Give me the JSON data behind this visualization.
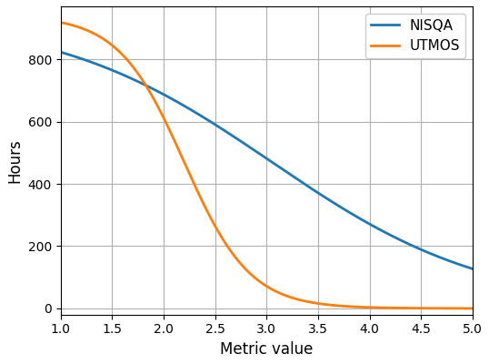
{
  "title": "",
  "xlabel": "Metric value",
  "ylabel": "Hours",
  "xlim": [
    1.0,
    5.0
  ],
  "ylim": [
    -20,
    970
  ],
  "xticks": [
    1.0,
    1.5,
    2.0,
    2.5,
    3.0,
    3.5,
    4.0,
    4.5,
    5.0
  ],
  "yticks": [
    0,
    200,
    400,
    600,
    800
  ],
  "nisqa_color": "#1f77b4",
  "utmos_color": "#ff7f0e",
  "nisqa_label": "NISQA",
  "utmos_label": "UTMOS",
  "nisqa_midpoint": 3.05,
  "nisqa_scale": 1.05,
  "nisqa_max": 940,
  "utmos_midpoint": 2.2,
  "utmos_scale": 0.32,
  "utmos_max": 940,
  "line_width": 2.0,
  "background_color": "#ffffff",
  "grid_color": "#b0b0b0",
  "figsize": [
    5.38,
    4.0
  ],
  "dpi": 100
}
